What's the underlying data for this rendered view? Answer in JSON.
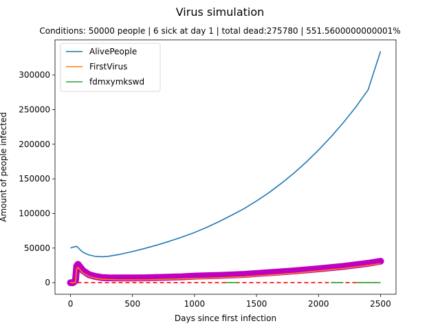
{
  "chart_data": {
    "type": "line",
    "title": "Virus simulation",
    "subtitle": "Conditions: 50000 people | 6 sick at day 1 | total dead:275780 | 551.5600000000001%",
    "xlabel": "Days since first infection",
    "ylabel": "Amount of people infected",
    "xlim": [
      -125,
      2625
    ],
    "ylim": [
      -16700,
      350700
    ],
    "xticks": [
      0,
      500,
      1000,
      1500,
      2000,
      2500
    ],
    "yticks": [
      0,
      50000,
      100000,
      150000,
      200000,
      250000,
      300000
    ],
    "legend_position": "upper-left",
    "grid": false,
    "series": [
      {
        "name": "AlivePeople",
        "color": "#1f77b4",
        "x": [
          0,
          25,
          50,
          75,
          100,
          150,
          200,
          250,
          300,
          400,
          500,
          600,
          700,
          800,
          900,
          1000,
          1100,
          1200,
          1300,
          1400,
          1500,
          1600,
          1700,
          1800,
          1900,
          2000,
          2100,
          2200,
          2300,
          2400,
          2500
        ],
        "y": [
          50000,
          51500,
          52500,
          48000,
          44000,
          40000,
          38000,
          37500,
          38000,
          41000,
          45000,
          49500,
          54500,
          60000,
          66000,
          72500,
          80000,
          88500,
          97500,
          107000,
          118000,
          130000,
          143500,
          158000,
          174000,
          191500,
          210500,
          231000,
          253500,
          278500,
          334000
        ]
      },
      {
        "name": "FirstVirus",
        "color": "#ff7f0e",
        "x": [
          0,
          20,
          40,
          50,
          60,
          80,
          100,
          150,
          200,
          250,
          300,
          400,
          500,
          600,
          700,
          800,
          900,
          1000,
          1200,
          1400,
          1600,
          1800,
          2000,
          2200,
          2400,
          2500
        ],
        "y": [
          0,
          0,
          500,
          20000,
          22000,
          18000,
          14000,
          9000,
          6500,
          5000,
          4500,
          4000,
          4000,
          4000,
          4500,
          5000,
          5500,
          6000,
          7000,
          8500,
          11000,
          13500,
          17000,
          20500,
          25000,
          27500
        ]
      },
      {
        "name": "fdmxymkswd",
        "color": "#2ca02c",
        "x": [
          1250,
          1350,
          2100,
          2200,
          2300,
          2500
        ],
        "y": [
          0,
          0,
          0,
          0,
          0,
          0
        ]
      }
    ],
    "extra_series": [
      {
        "style": "markers",
        "color": "#bf00bf",
        "x": [
          0,
          20,
          40,
          50,
          60,
          80,
          100,
          150,
          200,
          250,
          300,
          400,
          500,
          600,
          700,
          800,
          900,
          1000,
          1200,
          1400,
          1600,
          1800,
          2000,
          2200,
          2400,
          2500
        ],
        "y": [
          0,
          0,
          3000,
          24000,
          26500,
          22000,
          17500,
          11500,
          9000,
          7500,
          7000,
          6800,
          6800,
          7000,
          7500,
          8000,
          8500,
          9500,
          10500,
          12000,
          14500,
          17000,
          20000,
          23500,
          28000,
          31000
        ]
      },
      {
        "style": "dashed",
        "color": "#ff0000",
        "x": [
          0,
          2500
        ],
        "y": [
          0,
          0
        ]
      }
    ]
  }
}
